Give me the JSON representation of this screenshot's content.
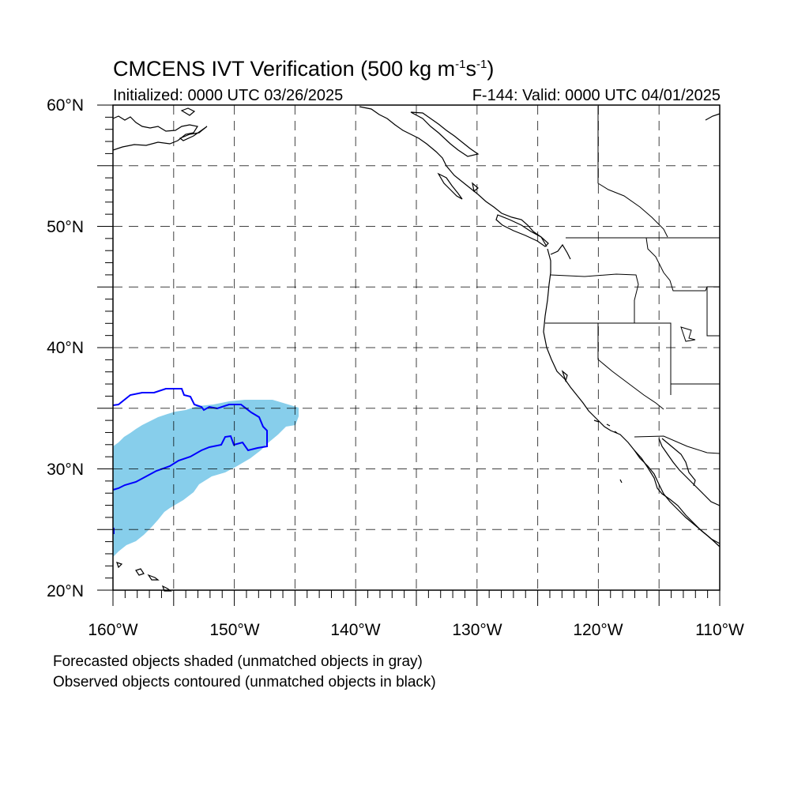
{
  "header": {
    "title_main": "CMCENS IVT Verification (500 kg m",
    "title_sup1": "-1",
    "title_mid": "s",
    "title_sup2": "-1",
    "title_end": ")",
    "initialized": "Initialized: 0000 UTC 03/26/2025",
    "valid": "F-144: Valid: 0000 UTC 04/01/2025"
  },
  "axes": {
    "lat_labels": [
      "60°N",
      "50°N",
      "40°N",
      "30°N",
      "20°N"
    ],
    "lon_labels": [
      "160°W",
      "150°W",
      "140°W",
      "130°W",
      "120°W",
      "110°W"
    ],
    "lon_range": [
      -160,
      -110
    ],
    "lat_range": [
      20,
      60
    ],
    "grid": "dashed every 5°"
  },
  "legend": {
    "line1": "Forecasted objects shaded (unmatched objects in gray)",
    "line2": "Observed objects contoured (unmatched objects in black)"
  },
  "colors": {
    "forecast_fill": "#87ceeb",
    "observed_contour": "#0000ff",
    "coast": "#000000",
    "grid": "#000000"
  }
}
